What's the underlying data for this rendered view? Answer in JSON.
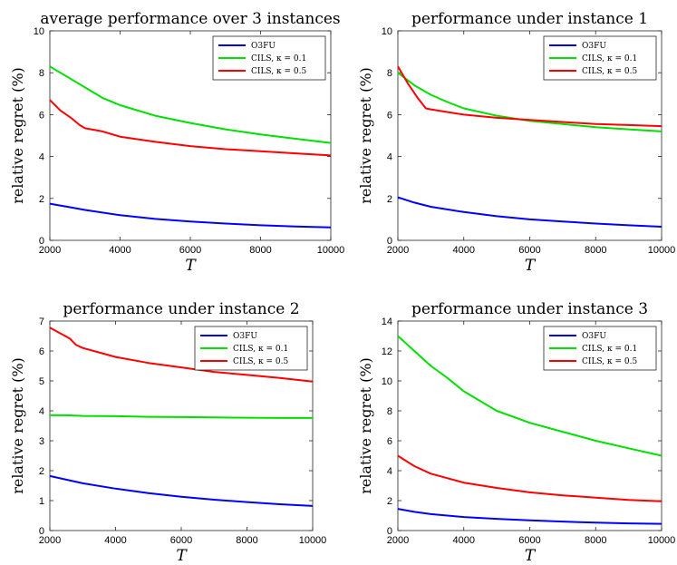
{
  "chart_data": [
    {
      "type": "line",
      "title": "average performance over 3 instances",
      "xlabel": "T",
      "ylabel": "relative regret  (%)",
      "xlim": [
        2000,
        10000
      ],
      "ylim": [
        0,
        10
      ],
      "xticks": [
        2000,
        4000,
        6000,
        8000,
        10000
      ],
      "yticks": [
        0,
        2,
        4,
        6,
        8,
        10
      ],
      "legend_position": "top-right",
      "series": [
        {
          "name": "O3FU",
          "color": "#0000ff",
          "x": [
            2000,
            2500,
            3000,
            4000,
            5000,
            6000,
            7000,
            8000,
            9000,
            10000
          ],
          "y": [
            1.75,
            1.6,
            1.45,
            1.2,
            1.02,
            0.9,
            0.8,
            0.72,
            0.66,
            0.62
          ]
        },
        {
          "name": "CILS, κ = 0.1",
          "color": "#00e000",
          "x": [
            2000,
            2500,
            3000,
            3500,
            4000,
            5000,
            6000,
            7000,
            8000,
            9000,
            10000
          ],
          "y": [
            8.3,
            7.8,
            7.3,
            6.8,
            6.45,
            5.95,
            5.6,
            5.3,
            5.05,
            4.85,
            4.65
          ]
        },
        {
          "name": "CILS, κ = 0.5",
          "color": "#ff0000",
          "x": [
            2000,
            2300,
            2600,
            2850,
            3000,
            3500,
            4000,
            5000,
            6000,
            7000,
            8000,
            9000,
            10000
          ],
          "y": [
            6.7,
            6.2,
            5.85,
            5.5,
            5.35,
            5.2,
            4.95,
            4.7,
            4.5,
            4.35,
            4.25,
            4.15,
            4.05
          ]
        }
      ]
    },
    {
      "type": "line",
      "title": "performance under instance 1",
      "xlabel": "T",
      "ylabel": "relative regret  (%)",
      "xlim": [
        2000,
        10000
      ],
      "ylim": [
        0,
        10
      ],
      "xticks": [
        2000,
        4000,
        6000,
        8000,
        10000
      ],
      "yticks": [
        0,
        2,
        4,
        6,
        8,
        10
      ],
      "legend_position": "top-right",
      "series": [
        {
          "name": "O3FU",
          "color": "#0000ff",
          "x": [
            2000,
            2500,
            3000,
            4000,
            5000,
            6000,
            7000,
            8000,
            9000,
            10000
          ],
          "y": [
            2.05,
            1.8,
            1.6,
            1.35,
            1.15,
            1.0,
            0.9,
            0.8,
            0.72,
            0.65
          ]
        },
        {
          "name": "CILS, κ = 0.1",
          "color": "#00e000",
          "x": [
            2000,
            2500,
            3000,
            3500,
            4000,
            5000,
            6000,
            7000,
            8000,
            9000,
            10000
          ],
          "y": [
            8.0,
            7.4,
            6.95,
            6.6,
            6.3,
            5.95,
            5.7,
            5.55,
            5.4,
            5.3,
            5.2
          ]
        },
        {
          "name": "CILS, κ = 0.5",
          "color": "#ff0000",
          "x": [
            2000,
            2300,
            2600,
            2850,
            3000,
            4000,
            5000,
            6000,
            7000,
            8000,
            9000,
            10000
          ],
          "y": [
            8.3,
            7.5,
            6.8,
            6.3,
            6.25,
            6.0,
            5.85,
            5.75,
            5.65,
            5.55,
            5.5,
            5.45
          ]
        }
      ]
    },
    {
      "type": "line",
      "title": "performance under instance 2",
      "xlabel": "T",
      "ylabel": "relative regret  (%)",
      "xlim": [
        2000,
        10000
      ],
      "ylim": [
        0,
        7
      ],
      "xticks": [
        2000,
        4000,
        6000,
        8000,
        10000
      ],
      "yticks": [
        0,
        1,
        2,
        3,
        4,
        5,
        6,
        7
      ],
      "legend_position": "top-right",
      "series": [
        {
          "name": "O3FU",
          "color": "#0000ff",
          "x": [
            2000,
            2500,
            3000,
            4000,
            5000,
            6000,
            7000,
            8000,
            9000,
            10000
          ],
          "y": [
            1.82,
            1.7,
            1.58,
            1.4,
            1.25,
            1.13,
            1.03,
            0.95,
            0.88,
            0.82
          ]
        },
        {
          "name": "CILS, κ = 0.1",
          "color": "#00e000",
          "x": [
            2000,
            2500,
            3000,
            4000,
            5000,
            6000,
            7000,
            8000,
            9000,
            10000
          ],
          "y": [
            3.85,
            3.85,
            3.83,
            3.82,
            3.8,
            3.79,
            3.78,
            3.77,
            3.76,
            3.76
          ]
        },
        {
          "name": "CILS, κ = 0.5",
          "color": "#ff0000",
          "x": [
            2000,
            2300,
            2600,
            2800,
            3000,
            3500,
            4000,
            5000,
            6000,
            7000,
            8000,
            9000,
            10000
          ],
          "y": [
            6.78,
            6.6,
            6.42,
            6.2,
            6.1,
            5.95,
            5.8,
            5.6,
            5.45,
            5.3,
            5.2,
            5.1,
            4.98
          ]
        }
      ]
    },
    {
      "type": "line",
      "title": "performance under instance 3",
      "xlabel": "T",
      "ylabel": "relative regret  (%)",
      "xlim": [
        2000,
        10000
      ],
      "ylim": [
        0,
        14
      ],
      "xticks": [
        2000,
        4000,
        6000,
        8000,
        10000
      ],
      "yticks": [
        0,
        2,
        4,
        6,
        8,
        10,
        12,
        14
      ],
      "legend_position": "top-right",
      "series": [
        {
          "name": "O3FU",
          "color": "#0000ff",
          "x": [
            2000,
            2500,
            3000,
            4000,
            5000,
            6000,
            7000,
            8000,
            9000,
            10000
          ],
          "y": [
            1.45,
            1.25,
            1.1,
            0.9,
            0.78,
            0.68,
            0.6,
            0.53,
            0.48,
            0.45
          ]
        },
        {
          "name": "CILS, κ = 0.1",
          "color": "#00e000",
          "x": [
            2000,
            2500,
            3000,
            3500,
            4000,
            5000,
            6000,
            7000,
            8000,
            9000,
            10000
          ],
          "y": [
            13.0,
            12.0,
            11.0,
            10.2,
            9.3,
            8.0,
            7.2,
            6.6,
            6.0,
            5.5,
            5.0
          ]
        },
        {
          "name": "CILS, κ = 0.5",
          "color": "#ff0000",
          "x": [
            2000,
            2500,
            3000,
            4000,
            5000,
            6000,
            7000,
            8000,
            9000,
            10000
          ],
          "y": [
            5.0,
            4.3,
            3.8,
            3.2,
            2.85,
            2.55,
            2.35,
            2.2,
            2.05,
            1.95
          ]
        }
      ]
    }
  ]
}
